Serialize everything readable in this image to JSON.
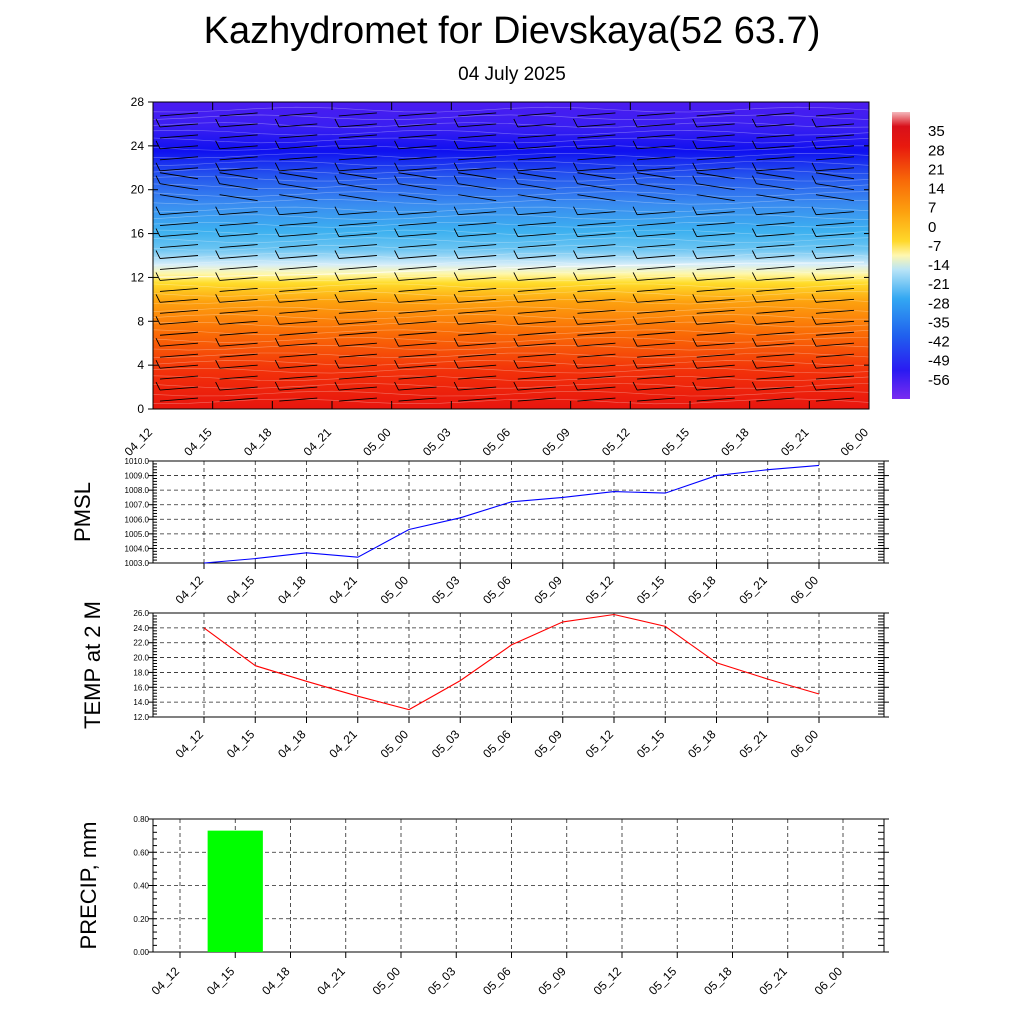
{
  "title": "Kazhydromet for Dievskaya(52 63.7)",
  "subtitle": "04 July 2025",
  "time_labels": [
    "04_12",
    "04_15",
    "04_18",
    "04_21",
    "05_00",
    "05_03",
    "05_06",
    "05_09",
    "05_12",
    "05_15",
    "05_18",
    "05_21",
    "06_00"
  ],
  "chart_data": [
    {
      "type": "heatmap",
      "name": "cross-section",
      "y_ticks": [
        0,
        4,
        8,
        12,
        16,
        20,
        24,
        28
      ],
      "ylim": [
        0,
        28
      ],
      "colorbar_labels": [
        "35",
        "28",
        "21",
        "14",
        "7",
        "0",
        "-7",
        "-14",
        "-21",
        "-28",
        "-35",
        "-42",
        "-49",
        "-56"
      ],
      "colorbar_range": [
        -63,
        42
      ],
      "freezing_level_km": [
        12.0,
        12.1,
        12.2,
        12.3,
        12.5,
        12.7,
        12.9,
        13.0,
        13.1,
        13.2,
        13.3,
        13.3,
        13.4
      ],
      "wind_barbs": "shown on grid"
    },
    {
      "type": "line",
      "ylabel": "PMSL",
      "color": "#0000ff",
      "ylim": [
        1003.0,
        1010.0
      ],
      "y_ticks": [
        "1003.0",
        "1004.0",
        "1005.0",
        "1006.0",
        "1007.0",
        "1008.0",
        "1009.0",
        "1010.0"
      ],
      "x": [
        "04_12",
        "04_15",
        "04_18",
        "04_21",
        "05_00",
        "05_03",
        "05_06",
        "05_09",
        "05_12",
        "05_15",
        "05_18",
        "05_21",
        "06_00"
      ],
      "values": [
        1003.0,
        1003.3,
        1003.7,
        1003.4,
        1005.3,
        1006.1,
        1007.2,
        1007.5,
        1007.9,
        1007.8,
        1009.0,
        1009.4,
        1009.7
      ]
    },
    {
      "type": "line",
      "ylabel": "TEMP at 2 M",
      "color": "#ff0000",
      "ylim": [
        12.0,
        26.0
      ],
      "y_ticks": [
        "12.0",
        "14.0",
        "16.0",
        "18.0",
        "20.0",
        "22.0",
        "24.0",
        "26.0"
      ],
      "x": [
        "04_12",
        "04_15",
        "04_18",
        "04_21",
        "05_00",
        "05_03",
        "05_06",
        "05_09",
        "05_12",
        "05_15",
        "05_18",
        "05_21",
        "06_00"
      ],
      "values": [
        24.0,
        18.9,
        16.8,
        14.8,
        13.0,
        16.9,
        21.7,
        24.8,
        25.8,
        24.2,
        19.3,
        17.1,
        15.1
      ]
    },
    {
      "type": "bar",
      "ylabel": "PRECIP, mm",
      "color": "#00ff00",
      "ylim": [
        0.0,
        0.8
      ],
      "y_ticks": [
        "0.00",
        "0.20",
        "0.40",
        "0.60",
        "0.80"
      ],
      "categories": [
        "04_12",
        "04_15",
        "04_18",
        "04_21",
        "05_00",
        "05_03",
        "05_06",
        "05_09",
        "05_12",
        "05_15",
        "05_18",
        "05_21",
        "06_00"
      ],
      "values": [
        0,
        0.73,
        0,
        0,
        0,
        0,
        0,
        0,
        0,
        0,
        0,
        0,
        0
      ]
    }
  ]
}
